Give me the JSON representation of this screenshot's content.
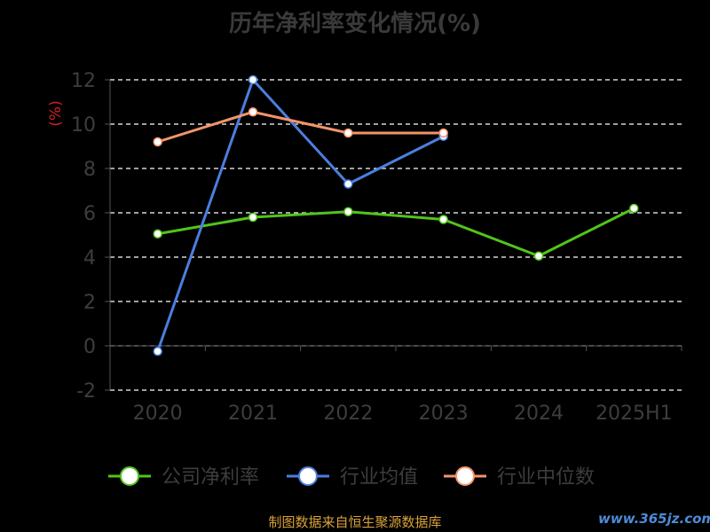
{
  "chart_data": {
    "type": "line",
    "title": "历年净利率变化情况(%)",
    "ylabel": "(%)",
    "xlabel": "",
    "categories": [
      "2020",
      "2021",
      "2022",
      "2023",
      "2024",
      "2025H1"
    ],
    "yticks": [
      "12",
      "10",
      "8",
      "6",
      "4",
      "2",
      "0",
      "-2"
    ],
    "ylim": [
      -2,
      12
    ],
    "grid": true,
    "legend_position": "bottom",
    "series": [
      {
        "name": "公司净利率",
        "color": "#52c41a",
        "values": [
          5.05,
          5.8,
          6.05,
          5.7,
          4.05,
          6.2
        ]
      },
      {
        "name": "行业均值",
        "color": "#4a7fe0",
        "values": [
          -0.25,
          12.0,
          7.3,
          9.45,
          null,
          null
        ]
      },
      {
        "name": "行业中位数",
        "color": "#f5946a",
        "values": [
          9.2,
          10.55,
          9.6,
          9.6,
          null,
          null
        ]
      }
    ],
    "source": "制图数据来自恒生聚源数据库",
    "watermark": "www.365jz.com"
  }
}
